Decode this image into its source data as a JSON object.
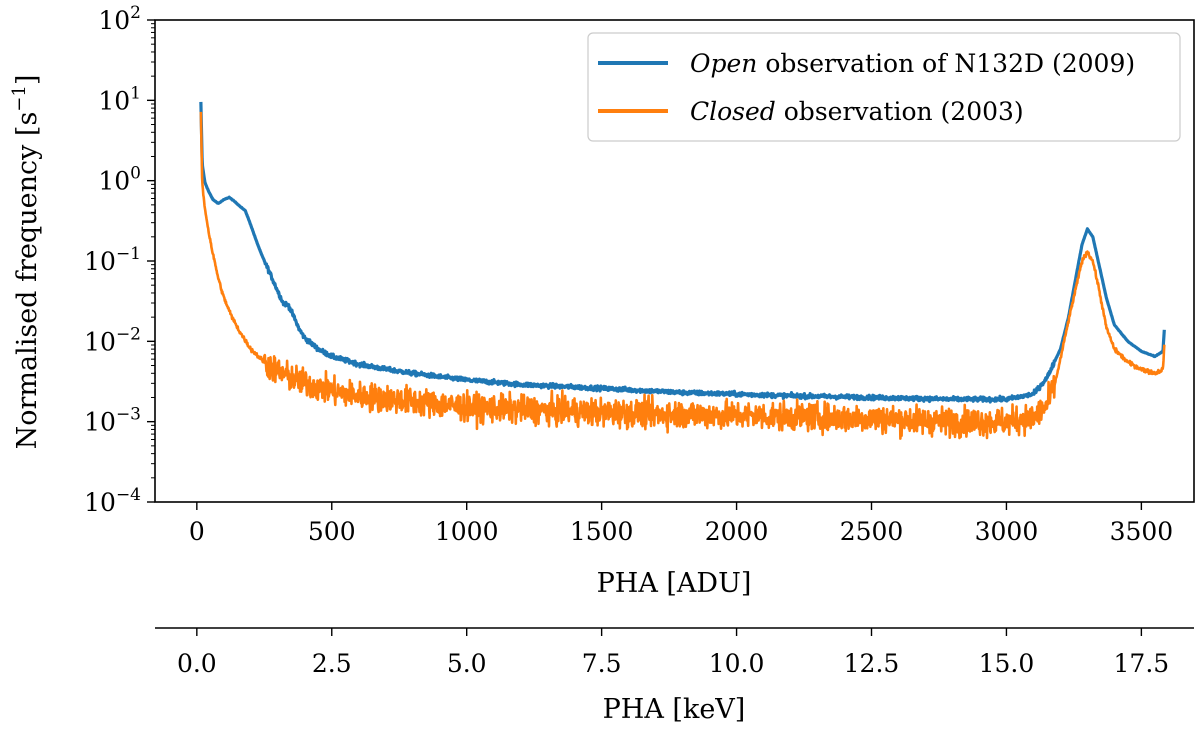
{
  "chart_data": {
    "type": "line",
    "yscale": "log",
    "xlabel": "PHA [ADU]",
    "xlabel_secondary": "PHA [keV]",
    "ylabel": "Normalised frequency [s",
    "ylabel_sup": "−1",
    "ylabel_end": "]",
    "xlim": [
      -155,
      3695
    ],
    "ylim": [
      0.0001,
      100
    ],
    "xticks": [
      0,
      500,
      1000,
      1500,
      2000,
      2500,
      3000,
      3500
    ],
    "xticks_secondary": [
      0.0,
      2.5,
      5.0,
      7.5,
      10.0,
      12.5,
      15.0,
      17.5
    ],
    "xticklabels_secondary": [
      "0.0",
      "2.5",
      "5.0",
      "7.5",
      "10.0",
      "12.5",
      "15.0",
      "17.5"
    ],
    "secondary_xlim": [
      -0.775,
      18.475
    ],
    "yticks": [
      {
        "base": "10",
        "exp": "2",
        "value": 100
      },
      {
        "base": "10",
        "exp": "1",
        "value": 10
      },
      {
        "base": "10",
        "exp": "0",
        "value": 1
      },
      {
        "base": "10",
        "exp": "−1",
        "value": 0.1
      },
      {
        "base": "10",
        "exp": "−2",
        "value": 0.01
      },
      {
        "base": "10",
        "exp": "−3",
        "value": 0.001
      },
      {
        "base": "10",
        "exp": "−4",
        "value": 0.0001
      }
    ],
    "legend_location": "top-right",
    "series": [
      {
        "name": "Open observation of N132D (2009)",
        "legend_italic": "Open",
        "legend_rest": " observation of N132D (2009)",
        "color": "#1f77b4",
        "noise": 0.06,
        "x": [
          15,
          20,
          30,
          45,
          60,
          80,
          100,
          120,
          140,
          160,
          180,
          200,
          220,
          240,
          260,
          280,
          300,
          320,
          340,
          360,
          380,
          400,
          450,
          500,
          600,
          700,
          800,
          1000,
          1200,
          1500,
          1800,
          2000,
          2200,
          2500,
          2800,
          3000,
          3100,
          3150,
          3200,
          3230,
          3260,
          3280,
          3300,
          3320,
          3340,
          3370,
          3400,
          3450,
          3500,
          3550,
          3580,
          3585
        ],
        "y": [
          9.5,
          1.6,
          0.95,
          0.72,
          0.58,
          0.52,
          0.58,
          0.62,
          0.55,
          0.48,
          0.42,
          0.28,
          0.18,
          0.12,
          0.085,
          0.06,
          0.042,
          0.03,
          0.028,
          0.02,
          0.014,
          0.011,
          0.008,
          0.0065,
          0.0052,
          0.0045,
          0.004,
          0.0033,
          0.0029,
          0.0026,
          0.0023,
          0.0022,
          0.0021,
          0.002,
          0.0019,
          0.0019,
          0.0022,
          0.0035,
          0.008,
          0.02,
          0.07,
          0.16,
          0.25,
          0.2,
          0.1,
          0.035,
          0.016,
          0.01,
          0.0075,
          0.0065,
          0.0075,
          0.014
        ]
      },
      {
        "name": "Closed observation (2003)",
        "legend_italic": "Closed",
        "legend_rest": " observation (2003)",
        "color": "#ff7f0e",
        "noise": 0.38,
        "x": [
          15,
          20,
          30,
          45,
          60,
          80,
          100,
          130,
          160,
          200,
          250,
          300,
          350,
          400,
          500,
          600,
          800,
          1000,
          1500,
          2000,
          2500,
          2800,
          3000,
          3100,
          3150,
          3180,
          3200,
          3230,
          3260,
          3280,
          3300,
          3320,
          3340,
          3370,
          3400,
          3450,
          3500,
          3550,
          3580,
          3585
        ],
        "y": [
          7.0,
          0.9,
          0.45,
          0.22,
          0.12,
          0.06,
          0.035,
          0.02,
          0.013,
          0.008,
          0.0055,
          0.0042,
          0.0035,
          0.003,
          0.0024,
          0.0021,
          0.0018,
          0.0015,
          0.0013,
          0.0012,
          0.0011,
          0.001,
          0.001,
          0.0011,
          0.0016,
          0.003,
          0.006,
          0.018,
          0.05,
          0.1,
          0.13,
          0.1,
          0.05,
          0.015,
          0.008,
          0.0055,
          0.0045,
          0.004,
          0.0045,
          0.009
        ]
      }
    ]
  }
}
